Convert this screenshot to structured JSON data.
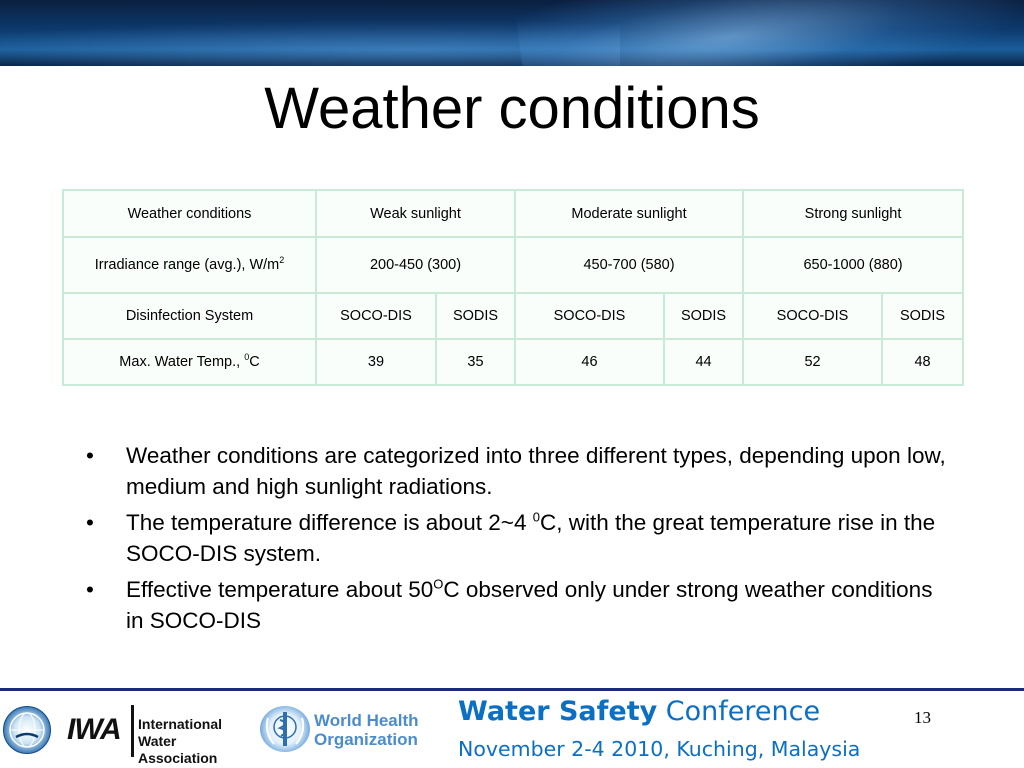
{
  "slide": {
    "title": "Weather conditions",
    "page_number": "13"
  },
  "table": {
    "header_row": {
      "label": "Weather conditions",
      "weak": "Weak sunlight",
      "moderate": "Moderate sunlight",
      "strong": "Strong sunlight"
    },
    "irradiance_row": {
      "label": "Irradiance range (avg.), W/m",
      "label_sup": "2",
      "weak": "200-450 (300)",
      "moderate": "450-700 (580)",
      "strong": "650-1000 (880)"
    },
    "system_row": {
      "label": "Disinfection System",
      "cells": [
        "SOCO-DIS",
        "SODIS",
        "SOCO-DIS",
        "SODIS",
        "SOCO-DIS",
        "SODIS"
      ]
    },
    "temp_row": {
      "label_pre": "Max. Water Temp., ",
      "label_sup": "0",
      "label_post": "C",
      "cells": [
        "39",
        "35",
        "46",
        "44",
        "52",
        "48"
      ]
    }
  },
  "bullets": {
    "marker": "•",
    "b1": "Weather conditions are categorized into three different types, depending upon low, medium and high sunlight radiations.",
    "b2_pre": "The temperature difference is about 2~4 ",
    "b2_sup": "0",
    "b2_post": "C, with the great temperature rise in the SOCO-DIS system.",
    "b3_pre": "Effective temperature about 50",
    "b3_sup": "O",
    "b3_post": "C observed only under strong weather conditions in SOCO-DIS"
  },
  "footer": {
    "iwa_mark": "IWA",
    "iwa_line1": "International",
    "iwa_line2": "Water Association",
    "who_line1": "World Health",
    "who_line2": "Organization",
    "conf_bold": "Water Safety",
    "conf_rest": " Conference",
    "conf_date": "November 2-4 2010, Kuching, Malaysia"
  },
  "colors": {
    "banner": "#0d3a6e",
    "table_border": "#c9ead9",
    "table_fill": "#f9fefb",
    "footer_rule": "#1d2b7a",
    "conference_text": "#0b6fc4"
  }
}
